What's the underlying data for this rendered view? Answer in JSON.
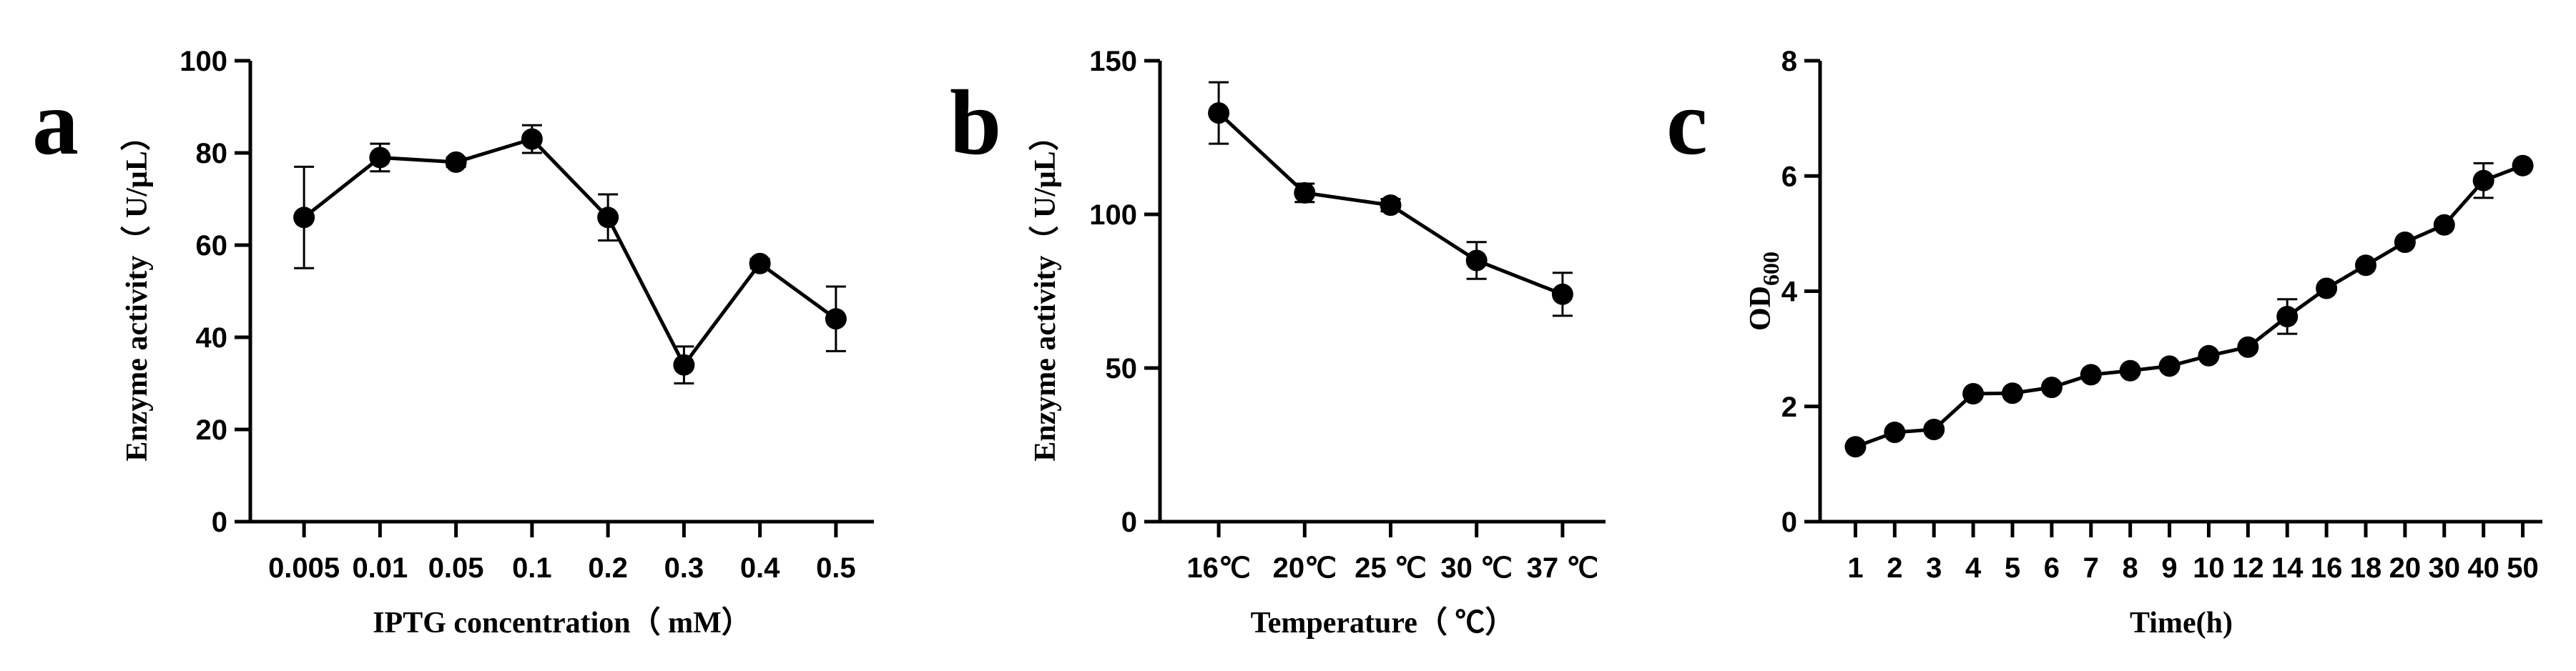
{
  "chart_data": [
    {
      "panel": "a",
      "type": "line",
      "xlabel": "IPTG concentration（ mM）",
      "ylabel": "Enzyme activity（ U/μL）",
      "categories": [
        "0.005",
        "0.01",
        "0.05",
        "0.1",
        "0.2",
        "0.3",
        "0.4",
        "0.5"
      ],
      "values": [
        66,
        79,
        78,
        83,
        66,
        34,
        56,
        44
      ],
      "errors": [
        11,
        3,
        1,
        3,
        5,
        4,
        1,
        7
      ],
      "ylim": [
        0,
        100
      ],
      "yticks": [
        0,
        20,
        40,
        60,
        80,
        100
      ],
      "grid": false
    },
    {
      "panel": "b",
      "type": "line",
      "xlabel": "Temperature（ ℃）",
      "ylabel": "Enzyme activity（ U/μL）",
      "categories": [
        "16℃",
        "20℃",
        "25 ℃",
        "30 ℃",
        "37 ℃"
      ],
      "values": [
        133,
        107,
        103,
        85,
        74
      ],
      "errors": [
        10,
        3,
        2,
        6,
        7
      ],
      "ylim": [
        0,
        150
      ],
      "yticks": [
        0,
        50,
        100,
        150
      ],
      "grid": false
    },
    {
      "panel": "c",
      "type": "line",
      "xlabel": "Time(h)",
      "ylabel": "OD",
      "ylabel_sub": "600",
      "categories": [
        "1",
        "2",
        "3",
        "4",
        "5",
        "6",
        "7",
        "8",
        "9",
        "10",
        "12",
        "14",
        "16",
        "18",
        "20",
        "30",
        "40",
        "50"
      ],
      "values": [
        1.3,
        1.55,
        1.6,
        2.22,
        2.23,
        2.33,
        2.55,
        2.62,
        2.7,
        2.88,
        3.03,
        3.56,
        4.05,
        4.45,
        4.85,
        5.15,
        5.92,
        6.18
      ],
      "errors": [
        0,
        0,
        0,
        0,
        0,
        0,
        0,
        0,
        0,
        0,
        0,
        0.3,
        0,
        0,
        0,
        0,
        0.3,
        0
      ],
      "ylim": [
        0,
        8
      ],
      "yticks": [
        0,
        2,
        4,
        6,
        8
      ],
      "grid": false
    }
  ]
}
